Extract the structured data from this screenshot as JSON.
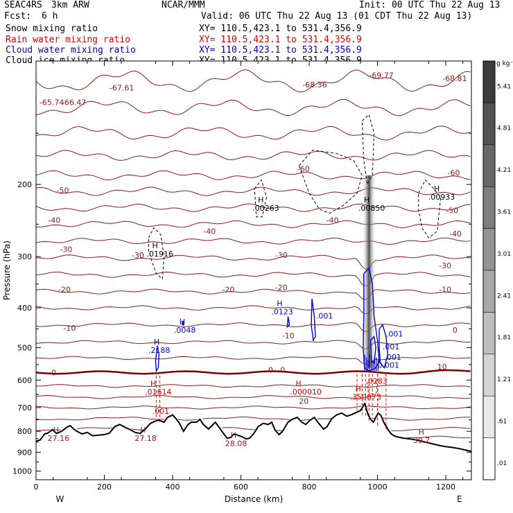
{
  "header": {
    "project": "SEAC4RS",
    "model": "3km ARW",
    "org": "NCAR/MMM",
    "init": "Init: 00 UTC Thu 22 Aug 13",
    "fcst_label": "Fcst:",
    "fcst_value": "6 h",
    "valid": "Valid: 06 UTC Thu 22 Aug 13 (01 CDT Thu 22 Aug 13)"
  },
  "fields": [
    {
      "name": "Snow mixing ratio",
      "xy": "XY= 110.5,423.1 to 531.4,356.9",
      "color": "#000000"
    },
    {
      "name": "Rain water mixing ratio",
      "xy": "XY= 110.5,423.1 to 531.4,356.9",
      "color": "#e00000"
    },
    {
      "name": "Cloud water mixing ratio",
      "xy": "XY= 110.5,423.1 to 531.4,356.9",
      "color": "#0000d0"
    },
    {
      "name": "Cloud ice mixing ratio",
      "xy": "XY= 110.5,423.1 to 531.4,356.9",
      "color": "#000000"
    }
  ],
  "chart_data": {
    "type": "cross-section",
    "xlabel": "Distance (km)",
    "ylabel": "Pressure (hPa)",
    "xlim": [
      0,
      1275
    ],
    "ylim": [
      1050,
      100
    ],
    "x_ticks": [
      "0",
      "200",
      "400",
      "600",
      "800",
      "1000",
      "1200"
    ],
    "y_ticks": [
      "200",
      "300",
      "400",
      "500",
      "600",
      "700",
      "800",
      "900",
      "1000"
    ],
    "direction_labels": [
      "W",
      "E"
    ],
    "isotherm_labels": [
      "-65.74",
      "-66.47",
      "-67.61",
      "-68.36",
      "-69.77",
      "-68.81",
      "-60",
      "-60",
      "-50",
      "-50",
      "-40",
      "-40",
      "-40",
      "-40",
      "-30",
      "-30",
      "-30",
      "-30",
      "-20",
      "-20",
      "-20",
      "-10",
      "-10",
      "-10",
      "0",
      "0",
      "0",
      "0",
      "10",
      "20"
    ],
    "maxima_labels": [
      {
        "label": "H",
        "value": ".01916",
        "x_km": 340,
        "p_hPa": 300
      },
      {
        "label": "H",
        "value": ".00263",
        "x_km": 650,
        "p_hPa": 232
      },
      {
        "label": "H",
        "value": ".00850",
        "x_km": 960,
        "p_hPa": 232
      },
      {
        "label": "H",
        "value": ".00933",
        "x_km": 1165,
        "p_hPa": 218
      },
      {
        "label": "H",
        "value": ".0048",
        "x_km": 420,
        "p_hPa": 460
      },
      {
        "label": "H",
        "value": ".2188",
        "x_km": 345,
        "p_hPa": 515
      },
      {
        "label": "H",
        "value": ".0123",
        "x_km": 705,
        "p_hPa": 415
      },
      {
        "label": "H",
        "value": ".01614",
        "x_km": 335,
        "p_hPa": 650
      },
      {
        "label": "H",
        "value": ".000010",
        "x_km": 760,
        "p_hPa": 650
      },
      {
        "label": "H",
        "value": ".350873",
        "x_km": 935,
        "p_hPa": 670
      },
      {
        "label": "H",
        "value": "27.16",
        "x_km": 50,
        "p_hPa": 845
      },
      {
        "label": "H",
        "value": "27.18",
        "x_km": 305,
        "p_hPa": 845
      },
      {
        "label": "H",
        "value": "28.08",
        "x_km": 570,
        "p_hPa": 870
      },
      {
        "label": "H",
        "value": "30.7",
        "x_km": 1120,
        "p_hPa": 855
      }
    ],
    "cloud_water_labels": [
      ".001",
      ".001",
      ".001",
      ".001",
      "0.001"
    ],
    "rain_labels": [
      ".001",
      ".0283"
    ],
    "colorbar": {
      "unit": "g kg⁻¹",
      "labels": [
        "5.41",
        "4.81",
        "4.21",
        "3.61",
        "3.01",
        "2.41",
        "1.81",
        "1.21",
        ".61",
        ".01"
      ]
    }
  },
  "colors": {
    "isotherm": "#8b1a1a",
    "freezing_line": "#7a0000",
    "terrain": "#000000",
    "rain": "#e00000",
    "cloud_water": "#0000d0",
    "snow": "#000000",
    "ice_shading": "#555555"
  }
}
